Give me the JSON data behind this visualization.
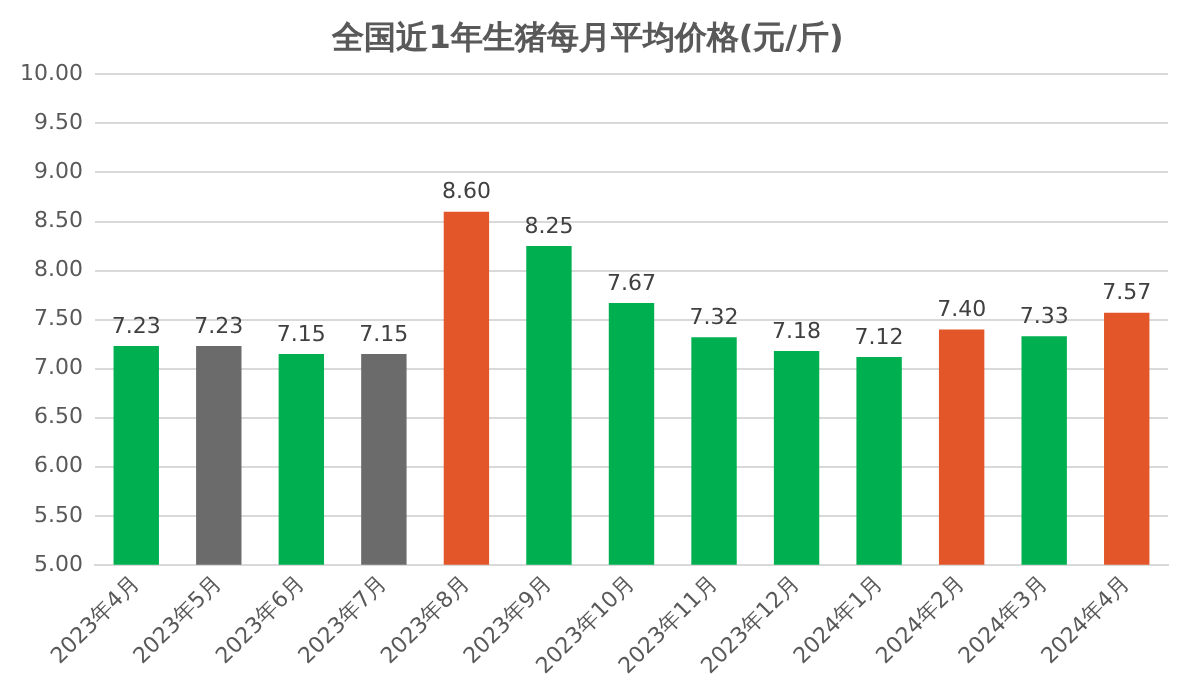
{
  "chart_data": {
    "type": "bar",
    "title": "全国近1年生猪每月平均价格(元/斤)",
    "categories": [
      "2023年4月",
      "2023年5月",
      "2023年6月",
      "2023年7月",
      "2023年8月",
      "2023年9月",
      "2023年10月",
      "2023年11月",
      "2023年12月",
      "2024年1月",
      "2024年2月",
      "2024年3月",
      "2024年4月"
    ],
    "values": [
      7.23,
      7.23,
      7.15,
      7.15,
      8.6,
      8.25,
      7.67,
      7.32,
      7.18,
      7.12,
      7.4,
      7.33,
      7.57
    ],
    "colors": [
      "#00b050",
      "#6b6b6b",
      "#00b050",
      "#6b6b6b",
      "#e2562a",
      "#00b050",
      "#00b050",
      "#00b050",
      "#00b050",
      "#00b050",
      "#e2562a",
      "#00b050",
      "#e2562a"
    ],
    "value_labels": [
      "7.23",
      "7.23",
      "7.15",
      "7.15",
      "8.60",
      "8.25",
      "7.67",
      "7.32",
      "7.18",
      "7.12",
      "7.40",
      "7.33",
      "7.57"
    ],
    "ylim": [
      5,
      10
    ],
    "yticks": [
      {
        "value": 5,
        "label": "5.00"
      },
      {
        "value": 5.5,
        "label": "5.50"
      },
      {
        "value": 6,
        "label": "6.00"
      },
      {
        "value": 6.5,
        "label": "6.50"
      },
      {
        "value": 7,
        "label": "7.00"
      },
      {
        "value": 7.5,
        "label": "7.50"
      },
      {
        "value": 8,
        "label": "8.00"
      },
      {
        "value": 8.5,
        "label": "8.50"
      },
      {
        "value": 9,
        "label": "9.00"
      },
      {
        "value": 9.5,
        "label": "9.50"
      },
      {
        "value": 10,
        "label": "10.00"
      }
    ],
    "grid": "y",
    "legend": false
  }
}
